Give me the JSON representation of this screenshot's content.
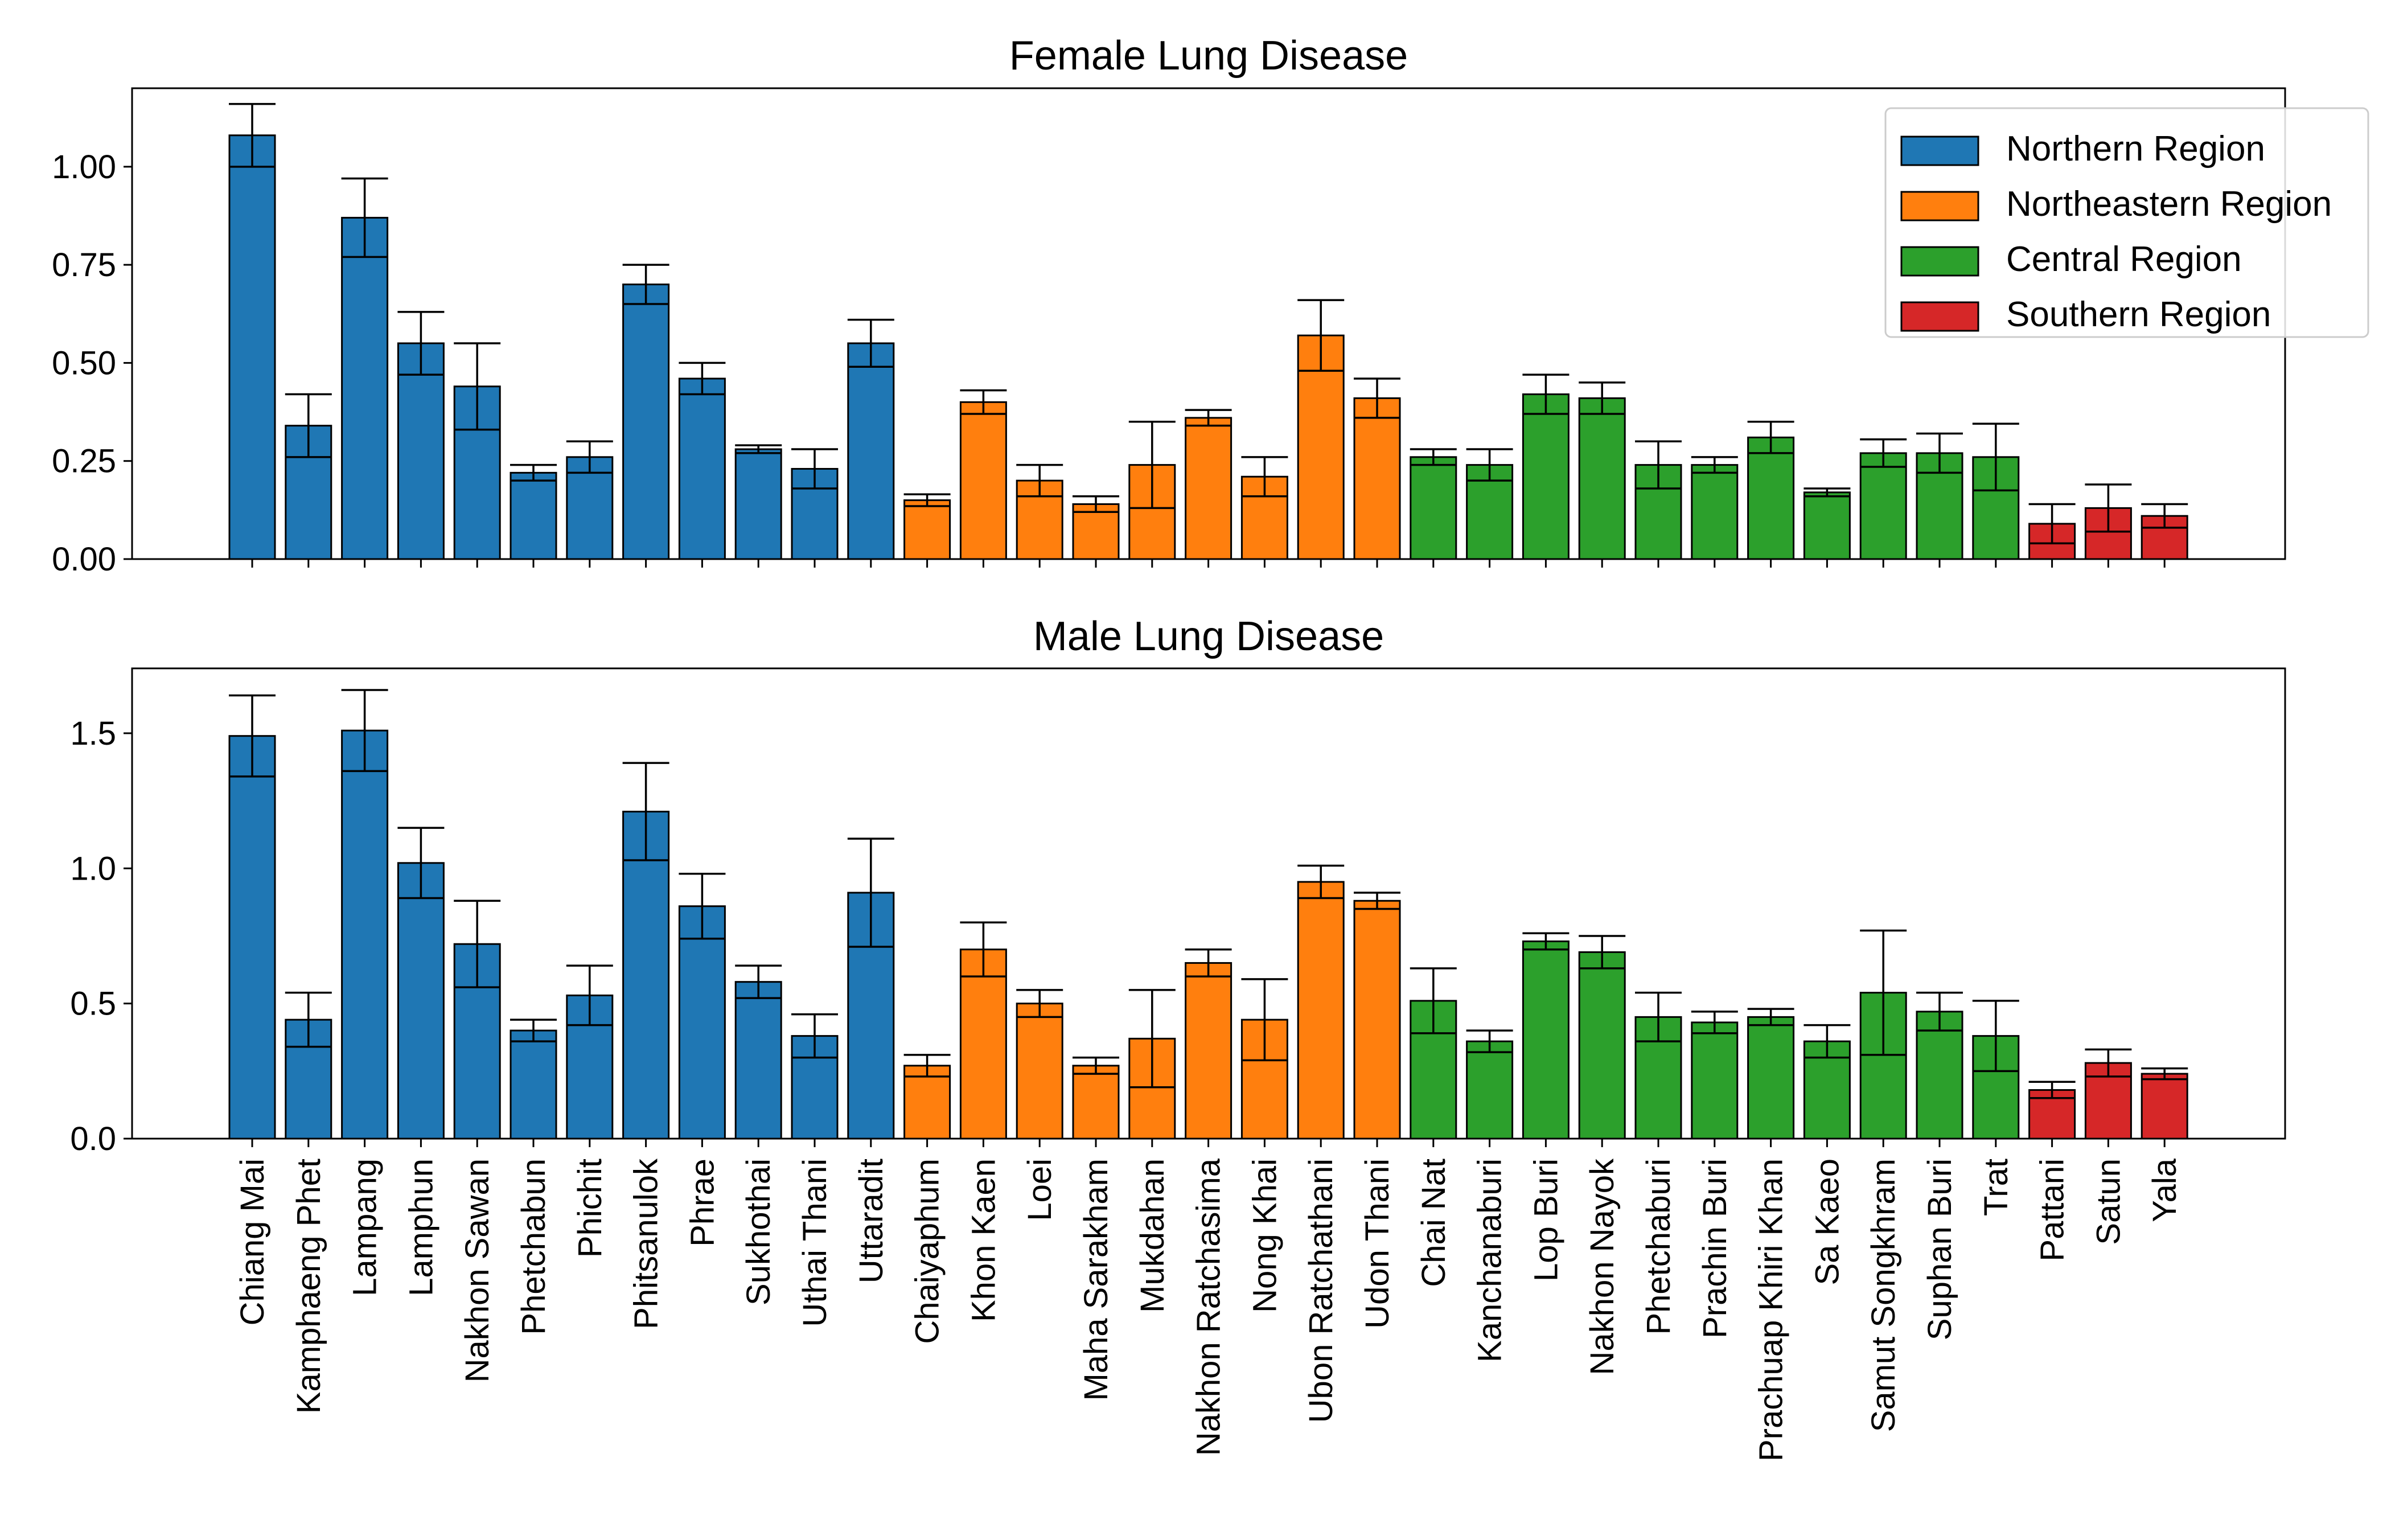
{
  "chart_data": [
    {
      "type": "bar",
      "title": "Female Lung Disease",
      "xlabel": "",
      "ylabel": "",
      "ylim": [
        0,
        1.2
      ],
      "yticks": [
        "0.00",
        "0.25",
        "0.50",
        "0.75",
        "1.00"
      ],
      "ytick_values": [
        0,
        0.25,
        0.5,
        0.75,
        1.0
      ],
      "categories": [
        "Chiang Mai",
        "Kamphaeng Phet",
        "Lampang",
        "Lamphun",
        "Nakhon Sawan",
        "Phetchabun",
        "Phichit",
        "Phitsanulok",
        "Phrae",
        "Sukhothai",
        "Uthai Thani",
        "Uttaradit",
        "Chaiyaphum",
        "Khon Kaen",
        "Loei",
        "Maha Sarakham",
        "Mukdahan",
        "Nakhon Ratchasima",
        "Nong Khai",
        "Ubon Ratchathani",
        "Udon Thani",
        "Chai Nat",
        "Kanchanaburi",
        "Lop Buri",
        "Nakhon Nayok",
        "Phetchaburi",
        "Prachin Buri",
        "Prachuap Khiri Khan",
        "Sa Kaeo",
        "Samut Songkhram",
        "Suphan Buri",
        "Trat",
        "Pattani",
        "Satun",
        "Yala"
      ],
      "values": [
        1.08,
        0.34,
        0.87,
        0.55,
        0.44,
        0.22,
        0.26,
        0.7,
        0.46,
        0.28,
        0.23,
        0.55,
        0.15,
        0.4,
        0.2,
        0.14,
        0.24,
        0.36,
        0.21,
        0.57,
        0.41,
        0.26,
        0.24,
        0.42,
        0.41,
        0.24,
        0.24,
        0.31,
        0.17,
        0.27,
        0.27,
        0.26,
        0.09,
        0.13,
        0.11
      ],
      "error": [
        0.08,
        0.08,
        0.1,
        0.08,
        0.11,
        0.02,
        0.04,
        0.05,
        0.04,
        0.01,
        0.05,
        0.06,
        0.015,
        0.03,
        0.04,
        0.02,
        0.11,
        0.02,
        0.05,
        0.09,
        0.05,
        0.02,
        0.04,
        0.05,
        0.04,
        0.06,
        0.02,
        0.04,
        0.01,
        0.035,
        0.05,
        0.085,
        0.05,
        0.06,
        0.03
      ],
      "region": [
        "Northern Region",
        "Northern Region",
        "Northern Region",
        "Northern Region",
        "Northern Region",
        "Northern Region",
        "Northern Region",
        "Northern Region",
        "Northern Region",
        "Northern Region",
        "Northern Region",
        "Northern Region",
        "Northeastern Region",
        "Northeastern Region",
        "Northeastern Region",
        "Northeastern Region",
        "Northeastern Region",
        "Northeastern Region",
        "Northeastern Region",
        "Northeastern Region",
        "Northeastern Region",
        "Central Region",
        "Central Region",
        "Central Region",
        "Central Region",
        "Central Region",
        "Central Region",
        "Central Region",
        "Central Region",
        "Central Region",
        "Central Region",
        "Central Region",
        "Southern Region",
        "Southern Region",
        "Southern Region"
      ],
      "legend_position": "top-right",
      "grid": false
    },
    {
      "type": "bar",
      "title": "Male Lung Disease",
      "xlabel": "",
      "ylabel": "",
      "ylim": [
        0,
        1.74
      ],
      "yticks": [
        "0.0",
        "0.5",
        "1.0",
        "1.5"
      ],
      "ytick_values": [
        0,
        0.5,
        1.0,
        1.5
      ],
      "categories": [
        "Chiang Mai",
        "Kamphaeng Phet",
        "Lampang",
        "Lamphun",
        "Nakhon Sawan",
        "Phetchabun",
        "Phichit",
        "Phitsanulok",
        "Phrae",
        "Sukhothai",
        "Uthai Thani",
        "Uttaradit",
        "Chaiyaphum",
        "Khon Kaen",
        "Loei",
        "Maha Sarakham",
        "Mukdahan",
        "Nakhon Ratchasima",
        "Nong Khai",
        "Ubon Ratchathani",
        "Udon Thani",
        "Chai Nat",
        "Kanchanaburi",
        "Lop Buri",
        "Nakhon Nayok",
        "Phetchaburi",
        "Prachin Buri",
        "Prachuap Khiri Khan",
        "Sa Kaeo",
        "Samut Songkhram",
        "Suphan Buri",
        "Trat",
        "Pattani",
        "Satun",
        "Yala"
      ],
      "values": [
        1.49,
        0.44,
        1.51,
        1.02,
        0.72,
        0.4,
        0.53,
        1.21,
        0.86,
        0.58,
        0.38,
        0.91,
        0.27,
        0.7,
        0.5,
        0.27,
        0.37,
        0.65,
        0.44,
        0.95,
        0.88,
        0.51,
        0.36,
        0.73,
        0.69,
        0.45,
        0.43,
        0.45,
        0.36,
        0.54,
        0.47,
        0.38,
        0.18,
        0.28,
        0.24
      ],
      "error": [
        0.15,
        0.1,
        0.15,
        0.13,
        0.16,
        0.04,
        0.11,
        0.18,
        0.12,
        0.06,
        0.08,
        0.2,
        0.04,
        0.1,
        0.05,
        0.03,
        0.18,
        0.05,
        0.15,
        0.06,
        0.03,
        0.12,
        0.04,
        0.03,
        0.06,
        0.09,
        0.04,
        0.03,
        0.06,
        0.23,
        0.07,
        0.13,
        0.03,
        0.05,
        0.02
      ],
      "region": [
        "Northern Region",
        "Northern Region",
        "Northern Region",
        "Northern Region",
        "Northern Region",
        "Northern Region",
        "Northern Region",
        "Northern Region",
        "Northern Region",
        "Northern Region",
        "Northern Region",
        "Northern Region",
        "Northeastern Region",
        "Northeastern Region",
        "Northeastern Region",
        "Northeastern Region",
        "Northeastern Region",
        "Northeastern Region",
        "Northeastern Region",
        "Northeastern Region",
        "Northeastern Region",
        "Central Region",
        "Central Region",
        "Central Region",
        "Central Region",
        "Central Region",
        "Central Region",
        "Central Region",
        "Central Region",
        "Central Region",
        "Central Region",
        "Central Region",
        "Southern Region",
        "Southern Region",
        "Southern Region"
      ],
      "grid": false
    }
  ],
  "legend": [
    {
      "label": "Northern Region",
      "color": "#1f77b4"
    },
    {
      "label": "Northeastern Region",
      "color": "#ff7f0e"
    },
    {
      "label": "Central Region",
      "color": "#2ca02c"
    },
    {
      "label": "Southern Region",
      "color": "#d62728"
    }
  ]
}
